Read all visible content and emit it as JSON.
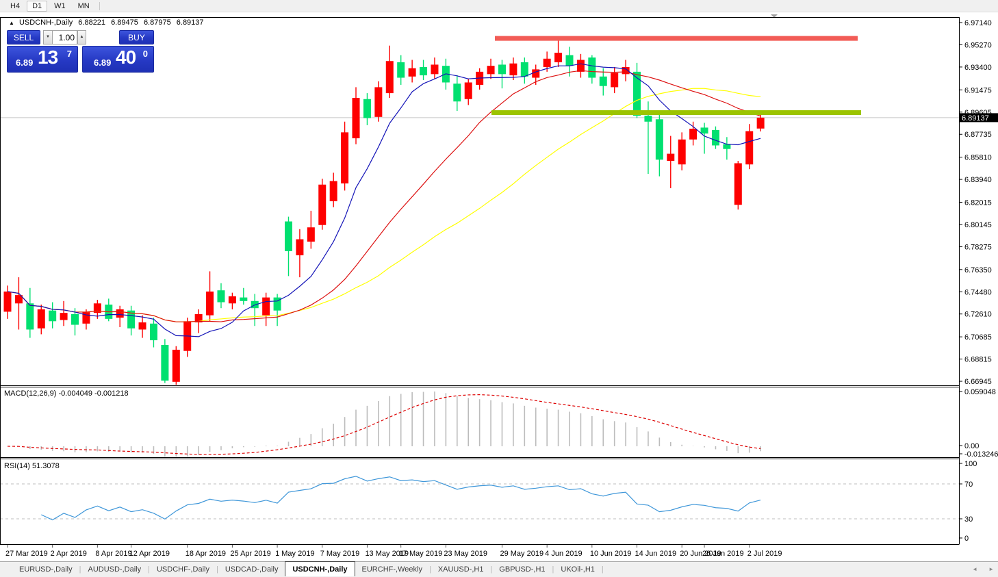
{
  "toolbar": {
    "timeframes": [
      {
        "label": "H4",
        "active": false
      },
      {
        "label": "D1",
        "active": true
      },
      {
        "label": "W1",
        "active": false
      },
      {
        "label": "MN",
        "active": false
      }
    ]
  },
  "symbol_header": {
    "collapse_arrow": "▲",
    "symbol": "USDCNH-,Daily",
    "open": "6.88221",
    "high": "6.89475",
    "low": "6.87975",
    "close": "6.89137"
  },
  "trade_panel": {
    "sell_label": "SELL",
    "buy_label": "BUY",
    "volume": "1.00",
    "spinner_down": "▼",
    "spinner_up": "▲",
    "sell_price": {
      "small": "6.89",
      "big": "13",
      "sup": "7"
    },
    "buy_price": {
      "small": "6.89",
      "big": "40",
      "sup": "0"
    }
  },
  "price_axis": {
    "labels": [
      "6.97140",
      "6.95270",
      "6.93400",
      "6.91475",
      "6.89605",
      "6.87735",
      "6.85810",
      "6.83940",
      "6.82015",
      "6.80145",
      "6.78275",
      "6.76350",
      "6.74480",
      "6.72610",
      "6.70685",
      "6.68815",
      "6.66945"
    ],
    "current_price": "6.89137"
  },
  "macd_panel": {
    "label": "MACD(12,26,9) -0.004049 -0.001218",
    "axis_labels": [
      "0.059048",
      "0.00",
      "-0.013246"
    ]
  },
  "rsi_panel": {
    "label": "RSI(14) 51.3078",
    "axis_labels": [
      "100",
      "70",
      "30",
      "0"
    ],
    "overbought": 70,
    "oversold": 30
  },
  "date_axis": {
    "labels": [
      [
        "27 Mar 2019",
        0
      ],
      [
        "2 Apr 2019",
        4
      ],
      [
        "8 Apr 2019",
        8
      ],
      [
        "12 Apr 2019",
        11
      ],
      [
        "18 Apr 2019",
        16
      ],
      [
        "25 Apr 2019",
        20
      ],
      [
        "1 May 2019",
        24
      ],
      [
        "7 May 2019",
        28
      ],
      [
        "13 May 2019",
        32
      ],
      [
        "17 May 2019",
        35
      ],
      [
        "23 May 2019",
        39
      ],
      [
        "29 May 2019",
        44
      ],
      [
        "4 Jun 2019",
        48
      ],
      [
        "10 Jun 2019",
        52
      ],
      [
        "14 Jun 2019",
        56
      ],
      [
        "20 Jun 2019",
        60
      ],
      [
        "26 Jun 2019",
        62
      ],
      [
        "2 Jul 2019",
        66
      ]
    ]
  },
  "tabs": {
    "items": [
      {
        "label": "EURUSD-,Daily",
        "active": false
      },
      {
        "label": "AUDUSD-,Daily",
        "active": false
      },
      {
        "label": "USDCHF-,Daily",
        "active": false
      },
      {
        "label": "USDCAD-,Daily",
        "active": false
      },
      {
        "label": "USDCNH-,Daily",
        "active": true
      },
      {
        "label": "EURCHF-,Weekly",
        "active": false
      },
      {
        "label": "XAUUSD-,H1",
        "active": false
      },
      {
        "label": "GBPUSD-,H1",
        "active": false
      },
      {
        "label": "UKOil-,H1",
        "active": false
      }
    ],
    "scroll_left": "◄",
    "scroll_right": "►"
  },
  "colors": {
    "bull": "#fe0000",
    "bear": "#00e070",
    "ma_fast": "#1414b8",
    "ma_mid": "#dd1111",
    "ma_slow": "#ffff00",
    "resistance": "#f25c56",
    "support": "#9cc400",
    "macd_hist": "#bcbcbc",
    "macd_signal": "#dd0000",
    "rsi_line": "#3f97d9",
    "price_line": "#c8c8c8",
    "accent_blue": "#2b46cf"
  },
  "chart_data": {
    "type": "candlestick",
    "symbol": "USDCNH-",
    "timeframe": "Daily",
    "ylim": [
      6.6665,
      6.9754
    ],
    "ma_periods": {
      "fast": 7,
      "mid": 18,
      "slow": 32
    },
    "objects": {
      "resistance_price": 6.9581,
      "support_price": 6.8956
    },
    "ohlc": [
      [
        6.728,
        6.75,
        6.722,
        6.745
      ],
      [
        6.735,
        6.757,
        6.713,
        6.742
      ],
      [
        6.735,
        6.748,
        6.706,
        6.713
      ],
      [
        6.714,
        6.734,
        6.709,
        6.73
      ],
      [
        6.729,
        6.736,
        6.714,
        6.72
      ],
      [
        6.721,
        6.737,
        6.716,
        6.727
      ],
      [
        6.726,
        6.731,
        6.708,
        6.717
      ],
      [
        6.718,
        6.73,
        6.713,
        6.728
      ],
      [
        6.727,
        6.738,
        6.722,
        6.735
      ],
      [
        6.734,
        6.739,
        6.72,
        6.722
      ],
      [
        6.723,
        6.733,
        6.715,
        6.73
      ],
      [
        6.729,
        6.733,
        6.708,
        6.714
      ],
      [
        6.713,
        6.725,
        6.706,
        6.719
      ],
      [
        6.718,
        6.723,
        6.698,
        6.704
      ],
      [
        6.7,
        6.705,
        6.668,
        6.67
      ],
      [
        6.669,
        6.699,
        6.666,
        6.696
      ],
      [
        6.695,
        6.723,
        6.69,
        6.72
      ],
      [
        6.719,
        6.73,
        6.71,
        6.726
      ],
      [
        6.725,
        6.762,
        6.72,
        6.745
      ],
      [
        6.746,
        6.752,
        6.731,
        6.736
      ],
      [
        6.735,
        6.744,
        6.73,
        6.741
      ],
      [
        6.74,
        6.748,
        6.734,
        6.737
      ],
      [
        6.737,
        6.743,
        6.716,
        6.731
      ],
      [
        6.725,
        6.744,
        6.716,
        6.74
      ],
      [
        6.74,
        6.743,
        6.716,
        6.729
      ],
      [
        6.804,
        6.808,
        6.758,
        6.779
      ],
      [
        6.7755,
        6.7975,
        6.757,
        6.789
      ],
      [
        6.787,
        6.813,
        6.781,
        6.799
      ],
      [
        6.801,
        6.84,
        6.797,
        6.835
      ],
      [
        6.821,
        6.845,
        6.816,
        6.838
      ],
      [
        6.836,
        6.888,
        6.83,
        6.879
      ],
      [
        6.874,
        6.917,
        6.869,
        6.908
      ],
      [
        6.907,
        6.912,
        6.885,
        6.891
      ],
      [
        6.892,
        6.922,
        6.888,
        6.917
      ],
      [
        6.912,
        6.952,
        6.908,
        6.939
      ],
      [
        6.938,
        6.944,
        6.919,
        6.925
      ],
      [
        6.926,
        6.94,
        6.921,
        6.933
      ],
      [
        6.934,
        6.94,
        6.923,
        6.927
      ],
      [
        6.928,
        6.942,
        6.924,
        6.936
      ],
      [
        6.935,
        6.941,
        6.915,
        6.921
      ],
      [
        6.92,
        6.927,
        6.897,
        6.905
      ],
      [
        6.907,
        6.924,
        6.902,
        6.921
      ],
      [
        6.919,
        6.933,
        6.915,
        6.93
      ],
      [
        6.928,
        6.941,
        6.924,
        6.935
      ],
      [
        6.936,
        6.94,
        6.916,
        6.928
      ],
      [
        6.927,
        6.942,
        6.923,
        6.937
      ],
      [
        6.938,
        6.942,
        6.92,
        6.926
      ],
      [
        6.925,
        6.936,
        6.919,
        6.932
      ],
      [
        6.934,
        6.947,
        6.93,
        6.941
      ],
      [
        6.938,
        6.958,
        6.934,
        6.946
      ],
      [
        6.944,
        6.951,
        6.926,
        6.935
      ],
      [
        6.93,
        6.945,
        6.925,
        6.94
      ],
      [
        6.942,
        6.944,
        6.92,
        6.925
      ],
      [
        6.926,
        6.933,
        6.91,
        6.918
      ],
      [
        6.917,
        6.934,
        6.912,
        6.929
      ],
      [
        6.928,
        6.94,
        6.922,
        6.934
      ],
      [
        6.93,
        6.9375,
        6.891,
        6.893
      ],
      [
        6.893,
        6.905,
        6.844,
        6.888
      ],
      [
        6.89,
        6.895,
        6.842,
        6.856
      ],
      [
        6.855,
        6.876,
        6.832,
        6.861
      ],
      [
        6.852,
        6.879,
        6.847,
        6.873
      ],
      [
        6.873,
        6.888,
        6.868,
        6.882
      ],
      [
        6.883,
        6.887,
        6.861,
        6.878
      ],
      [
        6.881,
        6.884,
        6.865,
        6.868
      ],
      [
        6.869,
        6.875,
        6.856,
        6.865
      ],
      [
        6.818,
        6.855,
        6.814,
        6.853
      ],
      [
        6.852,
        6.886,
        6.848,
        6.88
      ],
      [
        6.88221,
        6.89475,
        6.87975,
        6.89137
      ]
    ]
  }
}
